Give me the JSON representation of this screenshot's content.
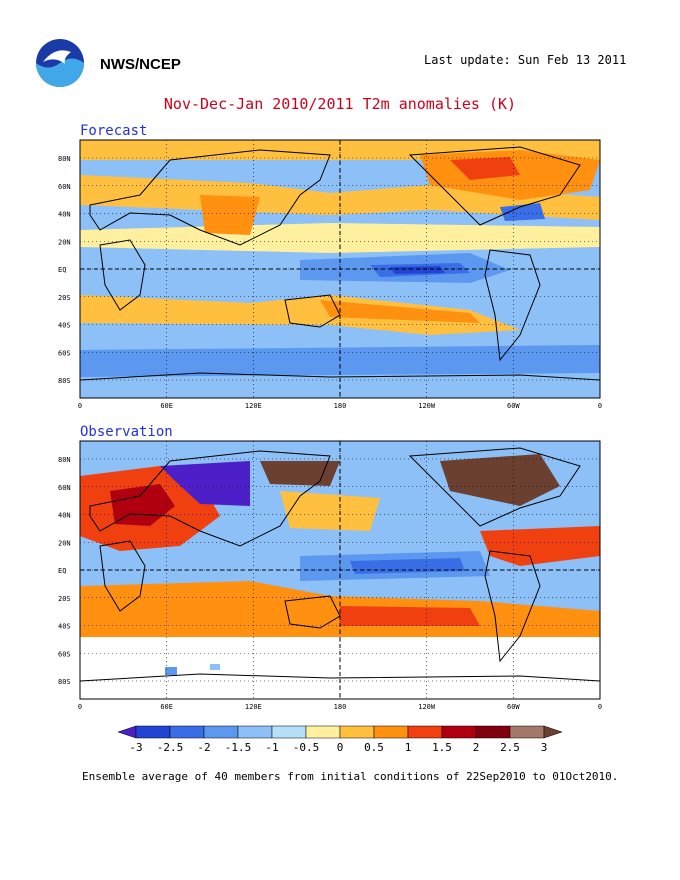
{
  "header": {
    "org": "NWS/NCEP",
    "last_update": "Last update: Sun Feb 13 2011",
    "title": "Nov-Dec-Jan 2010/2011 T2m anomalies (K)"
  },
  "panels": [
    {
      "label": "Forecast"
    },
    {
      "label": "Observation"
    }
  ],
  "lat_ticks": [
    "80N",
    "60N",
    "40N",
    "20N",
    "EQ",
    "20S",
    "40S",
    "60S",
    "80S"
  ],
  "lon_ticks": [
    "0",
    "60E",
    "120E",
    "180",
    "120W",
    "60W",
    "0"
  ],
  "colorbar": {
    "levels": [
      "-3",
      "-2.5",
      "-2",
      "-1.5",
      "-1",
      "-0.5",
      "0",
      "0.5",
      "1",
      "1.5",
      "2",
      "2.5",
      "3"
    ],
    "colors": [
      "#4c1fc8",
      "#2244d4",
      "#3a6ee6",
      "#5c98f0",
      "#8cc0f6",
      "#b6e0f8",
      "#fff0a0",
      "#ffc040",
      "#ff9010",
      "#f04010",
      "#b00010",
      "#800010",
      "#a47868",
      "#6c4030"
    ]
  },
  "caption": "Ensemble average of 40 members from initial conditions of 22Sep2010 to 01Oct2010."
}
